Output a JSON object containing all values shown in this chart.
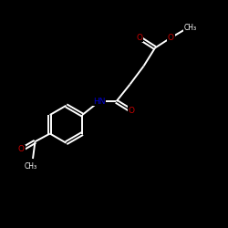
{
  "background_color": "#000000",
  "bond_color": "#ffffff",
  "O_color": "#cc0000",
  "N_color": "#0000cc",
  "figsize": [
    2.5,
    2.5
  ],
  "dpi": 100,
  "xlim": [
    0,
    10
  ],
  "ylim": [
    0,
    10
  ]
}
